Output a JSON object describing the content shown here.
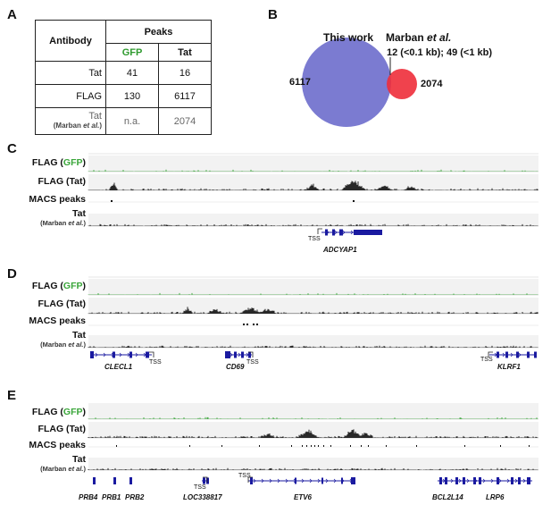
{
  "panel_a": {
    "letter": "A",
    "header_antibody": "Antibody",
    "header_peaks": "Peaks",
    "col_gfp": "GFP",
    "col_tat": "Tat",
    "rows": [
      {
        "label": "Tat",
        "sublabel": "",
        "gfp": "41",
        "tat": "16"
      },
      {
        "label": "FLAG",
        "sublabel": "",
        "gfp": "130",
        "tat": "6117"
      },
      {
        "label": "Tat",
        "sublabel": "(Marban et al.)",
        "gfp": "n.a.",
        "tat": "2074"
      }
    ]
  },
  "panel_b": {
    "letter": "B",
    "label_this_work": "This work",
    "label_marban": "Marban et al.",
    "count_this_work": "6117",
    "count_marban": "2074",
    "overlap_text": "12 (<0.1 kb); 49 (<1 kb)",
    "color_this_work": "#7b7bd1",
    "color_marban": "#ee2e3a"
  },
  "track_labels": {
    "flag_gfp_prefix": "FLAG (",
    "flag_gfp_word": "GFP",
    "flag_gfp_suffix": ")",
    "flag_tat": "FLAG (Tat)",
    "macs": "MACS peaks",
    "tat": "Tat",
    "tat_sub": "(Marban et al.)"
  },
  "panel_c": {
    "letter": "C",
    "genes": [
      {
        "name": "ADCYAP1"
      }
    ],
    "tss": [
      "TSS"
    ]
  },
  "panel_d": {
    "letter": "D",
    "genes": [
      {
        "name": "CLECL1"
      },
      {
        "name": "CD69"
      },
      {
        "name": "KLRF1"
      }
    ],
    "tss": [
      "TSS",
      "TSS",
      "TSS"
    ]
  },
  "panel_e": {
    "letter": "E",
    "genes": [
      {
        "name": "PRB4"
      },
      {
        "name": "PRB1"
      },
      {
        "name": "PRB2"
      },
      {
        "name": "LOC338817"
      },
      {
        "name": "ETV6"
      },
      {
        "name": "BCL2L14"
      },
      {
        "name": "LRP6"
      }
    ],
    "tss": [
      "TSS",
      "TSS"
    ]
  },
  "colors": {
    "gfp_track": "#3aa63a",
    "signal_track": "#111111",
    "gene_model": "#1a1aa0",
    "track_bg": "#f2f2f2"
  }
}
